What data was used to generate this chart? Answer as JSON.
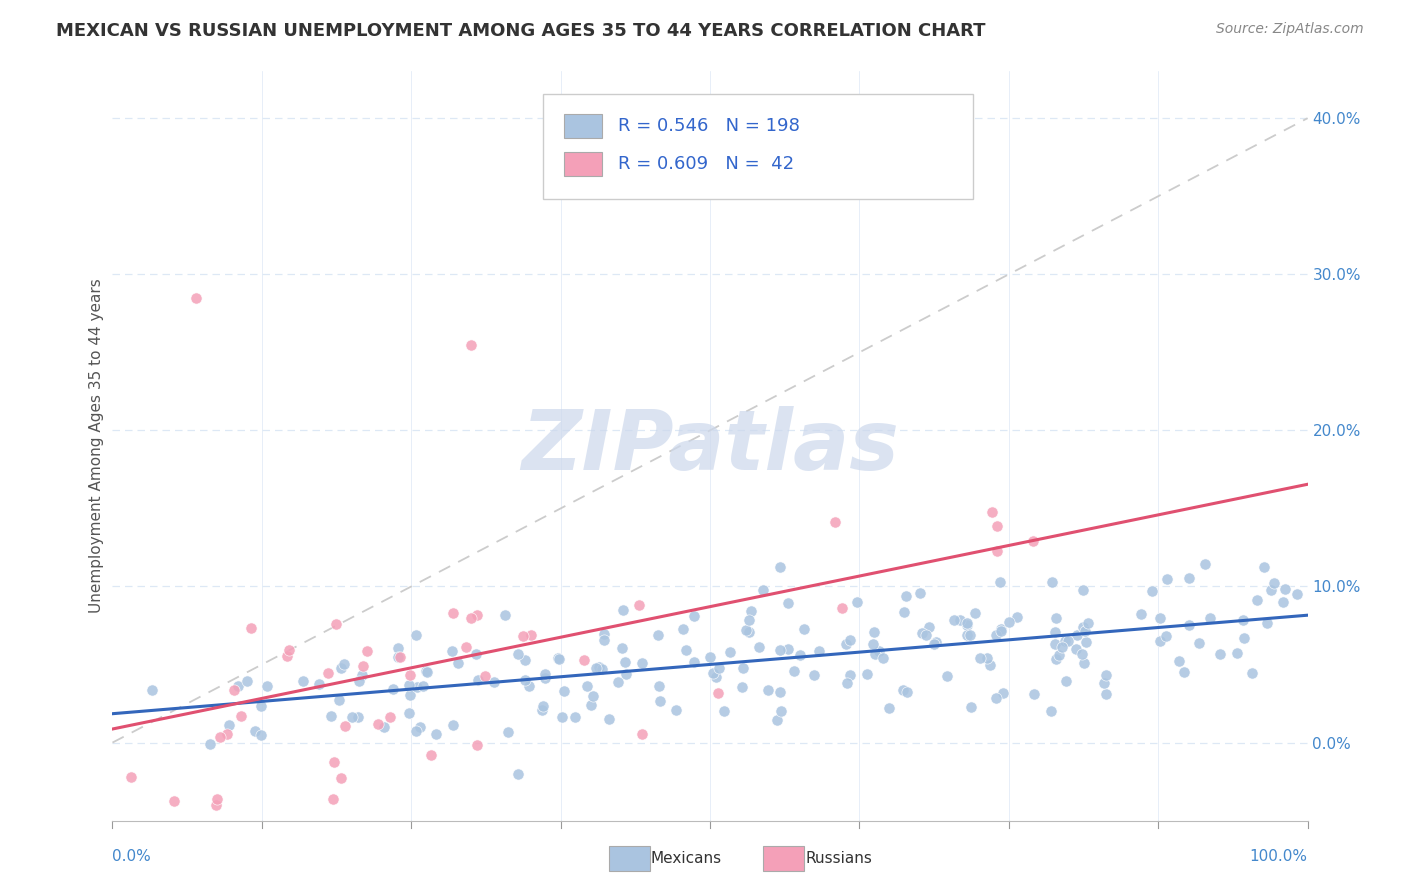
{
  "title": "MEXICAN VS RUSSIAN UNEMPLOYMENT AMONG AGES 35 TO 44 YEARS CORRELATION CHART",
  "source": "Source: ZipAtlas.com",
  "ylabel": "Unemployment Among Ages 35 to 44 years",
  "xlim": [
    0.0,
    1.0
  ],
  "ylim": [
    -0.05,
    0.43
  ],
  "ytick_positions": [
    0.0,
    0.1,
    0.2,
    0.3,
    0.4
  ],
  "ytick_labels": [
    "0.0%",
    "10.0%",
    "20.0%",
    "30.0%",
    "40.0%"
  ],
  "mexican_R": 0.546,
  "mexican_N": 198,
  "russian_R": 0.609,
  "russian_N": 42,
  "mexican_color": "#aac4e0",
  "russian_color": "#f4a0b8",
  "mexican_line_color": "#3366bb",
  "russian_line_color": "#e05070",
  "diagonal_color": "#cccccc",
  "watermark_color": "#ccd8ec",
  "legend_R_color": "#3366cc",
  "legend_N_color": "#cc2222",
  "background_color": "#ffffff",
  "grid_color": "#dde8f5",
  "title_color": "#333333",
  "axis_label_color": "#4488cc",
  "title_fontsize": 13,
  "source_fontsize": 10,
  "ylabel_fontsize": 11,
  "tick_fontsize": 11,
  "legend_fontsize": 13,
  "watermark_fontsize": 60
}
